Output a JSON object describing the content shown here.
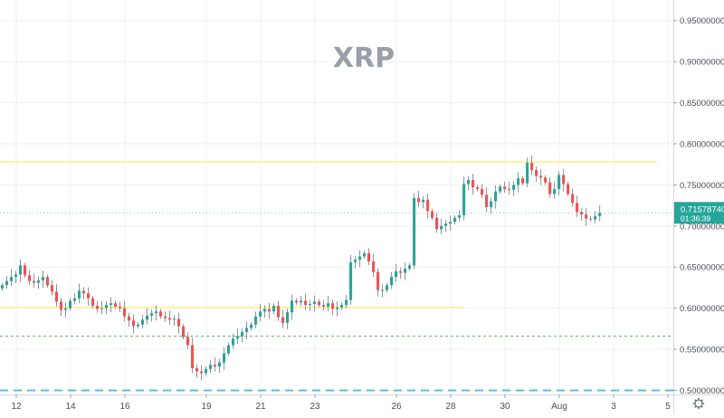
{
  "chart_data": {
    "type": "candlestick",
    "title": "XRP",
    "y_axis": {
      "side": "right",
      "range": [
        0.495,
        0.975
      ],
      "ticks": [
        "0.50000000",
        "0.55000000",
        "0.60000000",
        "0.65000000",
        "0.70000000",
        "0.75000000",
        "0.80000000",
        "0.85000000",
        "0.90000000",
        "0.95000000"
      ]
    },
    "x_axis": {
      "range": [
        11.4,
        36.2
      ],
      "ticks": [
        {
          "day": 12,
          "label": "12"
        },
        {
          "day": 14,
          "label": "14"
        },
        {
          "day": 16,
          "label": "16"
        },
        {
          "day": 19,
          "label": "19"
        },
        {
          "day": 21,
          "label": "21"
        },
        {
          "day": 23,
          "label": "23"
        },
        {
          "day": 26,
          "label": "26"
        },
        {
          "day": 28,
          "label": "28"
        },
        {
          "day": 30,
          "label": "30"
        },
        {
          "day": 32,
          "label": "Aug"
        },
        {
          "day": 34,
          "label": "3"
        },
        {
          "day": 36,
          "label": "5"
        }
      ]
    },
    "grid": true,
    "up_color": "#26a69a",
    "down_color": "#ef5350",
    "candle_interval_days": 0.1667,
    "closes": [
      0.628,
      0.633,
      0.638,
      0.641,
      0.652,
      0.64,
      0.633,
      0.631,
      0.634,
      0.638,
      0.628,
      0.62,
      0.608,
      0.598,
      0.6,
      0.609,
      0.612,
      0.621,
      0.618,
      0.612,
      0.603,
      0.599,
      0.6,
      0.604,
      0.606,
      0.602,
      0.6,
      0.59,
      0.585,
      0.578,
      0.58,
      0.586,
      0.591,
      0.594,
      0.596,
      0.59,
      0.588,
      0.586,
      0.587,
      0.578,
      0.565,
      0.555,
      0.527,
      0.523,
      0.521,
      0.526,
      0.531,
      0.529,
      0.534,
      0.545,
      0.555,
      0.563,
      0.566,
      0.571,
      0.576,
      0.58,
      0.59,
      0.596,
      0.599,
      0.596,
      0.603,
      0.589,
      0.582,
      0.595,
      0.609,
      0.607,
      0.609,
      0.604,
      0.605,
      0.608,
      0.604,
      0.602,
      0.606,
      0.599,
      0.601,
      0.604,
      0.61,
      0.656,
      0.659,
      0.663,
      0.667,
      0.657,
      0.644,
      0.622,
      0.622,
      0.628,
      0.638,
      0.645,
      0.643,
      0.648,
      0.652,
      0.734,
      0.729,
      0.732,
      0.718,
      0.71,
      0.696,
      0.7,
      0.703,
      0.705,
      0.71,
      0.713,
      0.751,
      0.756,
      0.747,
      0.745,
      0.738,
      0.723,
      0.73,
      0.742,
      0.748,
      0.745,
      0.744,
      0.75,
      0.758,
      0.752,
      0.777,
      0.768,
      0.761,
      0.759,
      0.753,
      0.739,
      0.745,
      0.762,
      0.751,
      0.739,
      0.728,
      0.717,
      0.714,
      0.709,
      0.708,
      0.712,
      0.716
    ],
    "horizontal_lines": [
      {
        "value": 0.778,
        "color": "#fff3a0",
        "style": "solid",
        "from_day": 11.4,
        "to_day": 35.6
      },
      {
        "value": 0.601,
        "color": "#fff3a0",
        "style": "solid",
        "from_day": 11.4,
        "to_day": 28.5
      },
      {
        "value": 0.566,
        "color": "#66bb6a",
        "style": "dotted",
        "from_day": 11.4,
        "to_day": 36.2
      },
      {
        "value": 0.5,
        "color": "#4fc3e8",
        "style": "dashed",
        "from_day": 11.4,
        "to_day": 36.2
      }
    ],
    "last_price": {
      "value": 0.716,
      "label": "0.71578740",
      "countdown": "01:36:39",
      "color": "#26a69a"
    }
  }
}
